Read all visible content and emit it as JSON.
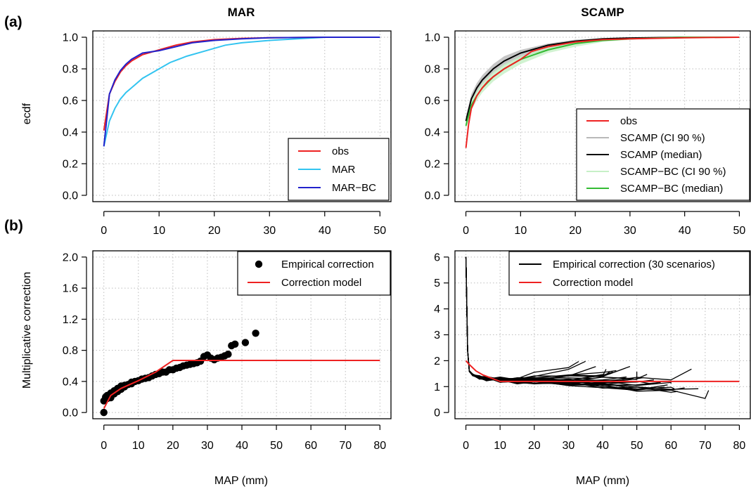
{
  "panel_labels": {
    "a": "(a)",
    "b": "(b)"
  },
  "titles": {
    "left": "MAR",
    "right": "SCAMP"
  },
  "ylabels": {
    "top": "ecdf",
    "bottom": "Multiplicative correction"
  },
  "xlabels": {
    "bottom_left": "MAP (mm)",
    "bottom_right": "MAP (mm)"
  },
  "legends": {
    "a_left": [
      "obs",
      "MAR",
      "MAR−BC"
    ],
    "a_right": [
      "obs",
      "SCAMP (CI 90 %)",
      "SCAMP (median)",
      "SCAMP−BC (CI 90 %)",
      "SCAMP−BC (median)"
    ],
    "b_left": [
      "Empirical correction",
      "Correction model"
    ],
    "b_right": [
      "Empirical correction (30 scenarios)",
      "Correction model"
    ]
  },
  "colors": {
    "obs": "#ee2222",
    "MAR": "#33c4f0",
    "MAR-BC": "#2222cc",
    "SCAMP_CI": "#b8b8b8",
    "SCAMP_median": "#000000",
    "SCAMP_BC_CI": "#c6f0c6",
    "SCAMP_BC_median": "#33bb33",
    "empirical": "#000000",
    "model": "#ee2222"
  },
  "chart_data": [
    {
      "id": "a_left",
      "type": "line",
      "title": "MAR",
      "xlabel": "",
      "ylabel": "ecdf",
      "xlim": [
        0,
        50
      ],
      "ylim": [
        0,
        1
      ],
      "xticks": [
        0,
        10,
        20,
        30,
        40,
        50
      ],
      "yticks": [
        0.0,
        0.2,
        0.4,
        0.6,
        0.8,
        1.0
      ],
      "ytick_labels": [
        "0.0",
        "0.2",
        "0.4",
        "0.6",
        "0.8",
        "1.0"
      ],
      "grid": true,
      "legend_position": "bottom-right",
      "series": [
        {
          "name": "obs",
          "color_key": "obs",
          "x": [
            0,
            1,
            2,
            3,
            4,
            5,
            7,
            10,
            13,
            16,
            20,
            25,
            30,
            40,
            50
          ],
          "y": [
            0.41,
            0.64,
            0.72,
            0.78,
            0.82,
            0.85,
            0.89,
            0.92,
            0.95,
            0.97,
            0.985,
            0.993,
            0.997,
            1.0,
            1.0
          ]
        },
        {
          "name": "MAR",
          "color_key": "MAR",
          "x": [
            0,
            1,
            2,
            3,
            4,
            5,
            7,
            10,
            12,
            15,
            18,
            20,
            22,
            25,
            30,
            35,
            40,
            50
          ],
          "y": [
            0.31,
            0.47,
            0.55,
            0.61,
            0.65,
            0.68,
            0.74,
            0.8,
            0.84,
            0.88,
            0.91,
            0.93,
            0.95,
            0.965,
            0.98,
            0.99,
            1.0,
            1.0
          ]
        },
        {
          "name": "MAR−BC",
          "color_key": "MAR-BC",
          "x": [
            0,
            1,
            2,
            3,
            4,
            5,
            7,
            10,
            13,
            16,
            20,
            25,
            30,
            40,
            50
          ],
          "y": [
            0.31,
            0.64,
            0.73,
            0.79,
            0.83,
            0.86,
            0.9,
            0.915,
            0.94,
            0.965,
            0.98,
            0.99,
            0.997,
            1.0,
            1.0
          ]
        }
      ]
    },
    {
      "id": "a_right",
      "type": "line",
      "title": "SCAMP",
      "xlabel": "",
      "ylabel": "",
      "xlim": [
        0,
        50
      ],
      "ylim": [
        0,
        1
      ],
      "xticks": [
        0,
        10,
        20,
        30,
        40,
        50
      ],
      "yticks": [
        0.0,
        0.2,
        0.4,
        0.6,
        0.8,
        1.0
      ],
      "ytick_labels": [
        "0.0",
        "0.2",
        "0.4",
        "0.6",
        "0.8",
        "1.0"
      ],
      "grid": true,
      "legend_position": "bottom-right",
      "series": [
        {
          "name": "SCAMP (CI 90 %)",
          "color_key": "SCAMP_CI",
          "kind": "band",
          "x": [
            0,
            1,
            2,
            3,
            5,
            7,
            10,
            15,
            20,
            25,
            30,
            40,
            50
          ],
          "y_low": [
            0.44,
            0.58,
            0.65,
            0.7,
            0.77,
            0.82,
            0.87,
            0.92,
            0.96,
            0.98,
            0.99,
            1.0,
            1.0
          ],
          "y_high": [
            0.5,
            0.64,
            0.71,
            0.76,
            0.83,
            0.88,
            0.92,
            0.96,
            0.985,
            0.993,
            0.997,
            1.0,
            1.0
          ]
        },
        {
          "name": "SCAMP−BC (CI 90 %)",
          "color_key": "SCAMP_BC_CI",
          "kind": "band",
          "x": [
            0,
            1,
            2,
            3,
            5,
            7,
            10,
            15,
            20,
            25,
            30,
            40,
            50
          ],
          "y_low": [
            0.42,
            0.54,
            0.6,
            0.65,
            0.72,
            0.77,
            0.83,
            0.9,
            0.94,
            0.97,
            0.985,
            0.995,
            1.0
          ],
          "y_high": [
            0.47,
            0.6,
            0.66,
            0.71,
            0.78,
            0.83,
            0.88,
            0.94,
            0.97,
            0.985,
            0.995,
            1.0,
            1.0
          ]
        },
        {
          "name": "SCAMP (median)",
          "color_key": "SCAMP_median",
          "x": [
            0,
            1,
            2,
            3,
            5,
            7,
            10,
            15,
            20,
            25,
            30,
            40,
            50
          ],
          "y": [
            0.47,
            0.61,
            0.68,
            0.73,
            0.8,
            0.85,
            0.9,
            0.95,
            0.975,
            0.99,
            0.995,
            1.0,
            1.0
          ]
        },
        {
          "name": "SCAMP−BC (median)",
          "color_key": "SCAMP_BC_median",
          "x": [
            0,
            1,
            2,
            3,
            5,
            7,
            10,
            15,
            20,
            25,
            30,
            40,
            50
          ],
          "y": [
            0.44,
            0.57,
            0.63,
            0.68,
            0.75,
            0.8,
            0.86,
            0.92,
            0.96,
            0.98,
            0.99,
            1.0,
            1.0
          ]
        },
        {
          "name": "obs",
          "color_key": "obs",
          "x": [
            0,
            0.5,
            1,
            2,
            3,
            4,
            5,
            7,
            10,
            12,
            15,
            20,
            25,
            30,
            40,
            50
          ],
          "y": [
            0.3,
            0.45,
            0.55,
            0.63,
            0.68,
            0.72,
            0.75,
            0.8,
            0.86,
            0.91,
            0.94,
            0.97,
            0.985,
            0.99,
            0.997,
            1.0
          ]
        }
      ]
    },
    {
      "id": "b_left",
      "type": "scatter",
      "title": "",
      "xlabel": "MAP (mm)",
      "ylabel": "Multiplicative correction",
      "xlim": [
        0,
        80
      ],
      "ylim": [
        0,
        2
      ],
      "xticks": [
        0,
        10,
        20,
        30,
        40,
        50,
        60,
        70,
        80
      ],
      "yticks": [
        0.0,
        0.4,
        0.8,
        1.2,
        1.6,
        2.0
      ],
      "ytick_labels": [
        "0.0",
        "0.4",
        "0.8",
        "1.2",
        "1.6",
        "2.0"
      ],
      "grid": true,
      "legend_position": "top-right",
      "series": [
        {
          "name": "Empirical correction",
          "color_key": "empirical",
          "kind": "points",
          "points": [
            [
              0,
              0.0
            ],
            [
              0,
              0.15
            ],
            [
              0.5,
              0.2
            ],
            [
              1,
              0.18
            ],
            [
              1,
              0.22
            ],
            [
              1.5,
              0.21
            ],
            [
              2,
              0.19
            ],
            [
              2,
              0.25
            ],
            [
              3,
              0.24
            ],
            [
              3,
              0.28
            ],
            [
              4,
              0.27
            ],
            [
              4,
              0.31
            ],
            [
              5,
              0.3
            ],
            [
              5,
              0.34
            ],
            [
              6,
              0.33
            ],
            [
              6,
              0.35
            ],
            [
              7,
              0.36
            ],
            [
              8,
              0.37
            ],
            [
              8,
              0.39
            ],
            [
              9,
              0.4
            ],
            [
              10,
              0.41
            ],
            [
              11,
              0.43
            ],
            [
              12,
              0.44
            ],
            [
              13,
              0.45
            ],
            [
              14,
              0.47
            ],
            [
              15,
              0.49
            ],
            [
              16,
              0.5
            ],
            [
              17,
              0.52
            ],
            [
              18,
              0.52
            ],
            [
              19,
              0.55
            ],
            [
              20,
              0.55
            ],
            [
              21,
              0.57
            ],
            [
              22,
              0.58
            ],
            [
              23,
              0.6
            ],
            [
              24,
              0.61
            ],
            [
              25,
              0.62
            ],
            [
              26,
              0.63
            ],
            [
              27,
              0.64
            ],
            [
              28,
              0.66
            ],
            [
              29,
              0.72
            ],
            [
              30,
              0.74
            ],
            [
              31,
              0.7
            ],
            [
              32,
              0.68
            ],
            [
              33,
              0.7
            ],
            [
              34,
              0.71
            ],
            [
              35,
              0.73
            ],
            [
              36,
              0.75
            ],
            [
              37,
              0.86
            ],
            [
              38,
              0.88
            ],
            [
              41,
              0.9
            ],
            [
              44,
              1.02
            ]
          ]
        },
        {
          "name": "Correction model",
          "color_key": "model",
          "x": [
            0,
            2,
            5,
            10,
            15,
            20,
            21,
            80
          ],
          "y": [
            0.05,
            0.22,
            0.31,
            0.41,
            0.52,
            0.67,
            0.67,
            0.67
          ]
        }
      ]
    },
    {
      "id": "b_right",
      "type": "line",
      "title": "",
      "xlabel": "MAP (mm)",
      "ylabel": "",
      "xlim": [
        0,
        80
      ],
      "ylim": [
        0,
        6
      ],
      "xticks": [
        0,
        10,
        20,
        30,
        40,
        50,
        60,
        70,
        80
      ],
      "yticks": [
        0,
        1,
        2,
        3,
        4,
        5,
        6
      ],
      "ytick_labels": [
        "0",
        "1",
        "2",
        "3",
        "4",
        "5",
        "6"
      ],
      "grid": true,
      "legend_position": "top-right",
      "series": [
        {
          "name": "Empirical correction (30 scenarios)",
          "color_key": "empirical",
          "kind": "scenarios",
          "scenario_count": 30,
          "base_x": [
            0,
            0.5,
            1,
            2,
            4,
            6,
            10,
            15,
            20,
            30,
            40,
            50,
            60,
            70
          ],
          "base_y": [
            6.0,
            2.4,
            1.6,
            1.45,
            1.35,
            1.3,
            1.25,
            1.2,
            1.2,
            1.15,
            1.1,
            1.05,
            1.0,
            0.9
          ],
          "max_x": [
            52,
            58,
            60,
            64,
            66,
            68,
            71,
            48,
            44,
            40,
            35,
            62,
            55,
            50,
            46,
            42,
            38,
            61,
            57,
            53,
            49,
            45,
            41,
            37,
            33,
            59,
            54,
            47,
            43,
            39
          ],
          "end_offset": [
            0.2,
            -0.3,
            0.1,
            -0.2,
            0.4,
            -0.1,
            -0.3,
            0.5,
            0.6,
            0.3,
            0.7,
            -0.2,
            0.1,
            0.3,
            0.2,
            0.4,
            0.5,
            -0.1,
            0.0,
            0.2,
            0.3,
            0.1,
            0.4,
            0.3,
            0.8,
            -0.2,
            0.1,
            0.2,
            0.3,
            0.4
          ]
        },
        {
          "name": "Correction model",
          "color_key": "model",
          "x": [
            0,
            1,
            3,
            5,
            8,
            10,
            80
          ],
          "y": [
            2.0,
            1.85,
            1.6,
            1.45,
            1.3,
            1.2,
            1.2
          ]
        }
      ]
    }
  ]
}
